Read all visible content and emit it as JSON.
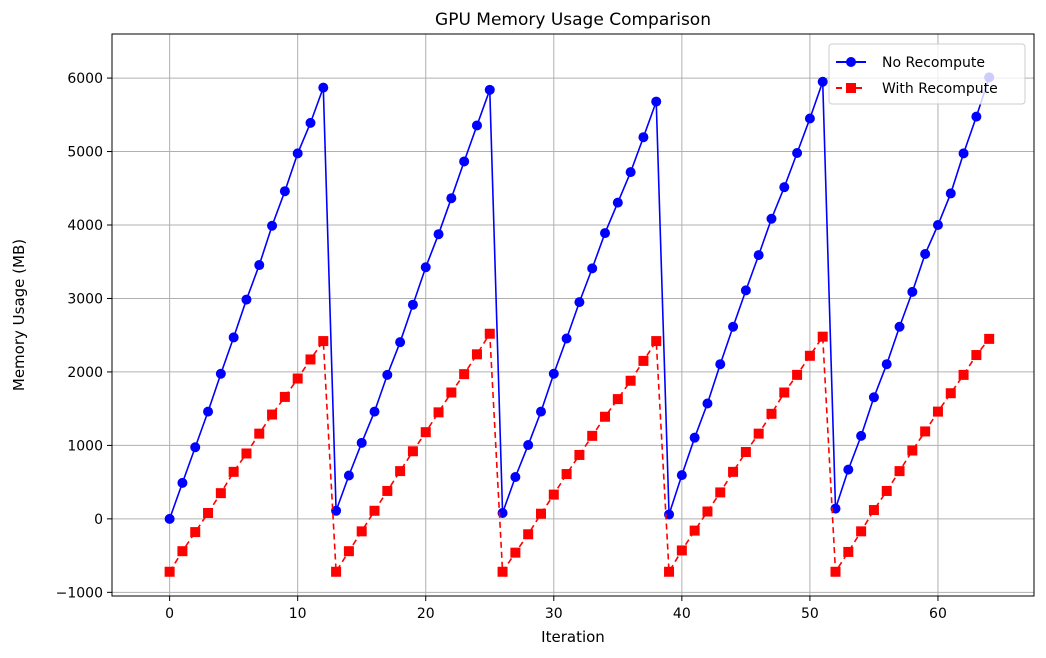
{
  "chart_data": {
    "type": "line",
    "title": "GPU Memory Usage Comparison",
    "xlabel": "Iteration",
    "ylabel": "Memory Usage (MB)",
    "xlim": [
      -4.5,
      67.5
    ],
    "ylim": [
      -1050,
      6600
    ],
    "xticks": [
      0,
      10,
      20,
      30,
      40,
      50,
      60
    ],
    "yticks": [
      -1000,
      0,
      1000,
      2000,
      3000,
      4000,
      5000,
      6000
    ],
    "grid": true,
    "legend_position": "top-right",
    "series": [
      {
        "name": "No Recompute",
        "color": "#0000ff",
        "line_style": "solid",
        "marker": "circle",
        "values": [
          0,
          490,
          975,
          1460,
          1975,
          2470,
          2985,
          3455,
          3990,
          4460,
          4975,
          5390,
          5870,
          110,
          590,
          1035,
          1460,
          1960,
          2405,
          2915,
          3425,
          3875,
          4365,
          4865,
          5355,
          5840,
          80,
          570,
          1005,
          1460,
          1975,
          2455,
          2950,
          3410,
          3890,
          4305,
          4720,
          5195,
          5680,
          60,
          595,
          1105,
          1570,
          2105,
          2615,
          3110,
          3590,
          4085,
          4515,
          4980,
          5450,
          5950,
          140,
          670,
          1130,
          1655,
          2105,
          2615,
          3090,
          3605,
          4000,
          4430,
          4975,
          5475,
          6010
        ]
      },
      {
        "name": "With Recompute",
        "color": "#ff0000",
        "line_style": "dashed",
        "marker": "square",
        "values": [
          -720,
          -440,
          -180,
          80,
          350,
          640,
          890,
          1160,
          1420,
          1660,
          1910,
          2170,
          2420,
          -720,
          -440,
          -170,
          110,
          380,
          650,
          920,
          1180,
          1450,
          1720,
          1970,
          2240,
          2520,
          -720,
          -460,
          -210,
          70,
          330,
          610,
          870,
          1130,
          1390,
          1630,
          1880,
          2150,
          2420,
          -720,
          -430,
          -160,
          100,
          360,
          640,
          910,
          1160,
          1430,
          1720,
          1960,
          2220,
          2480,
          -720,
          -450,
          -170,
          120,
          380,
          650,
          930,
          1190,
          1460,
          1710,
          1960,
          2230,
          2450
        ]
      }
    ]
  }
}
